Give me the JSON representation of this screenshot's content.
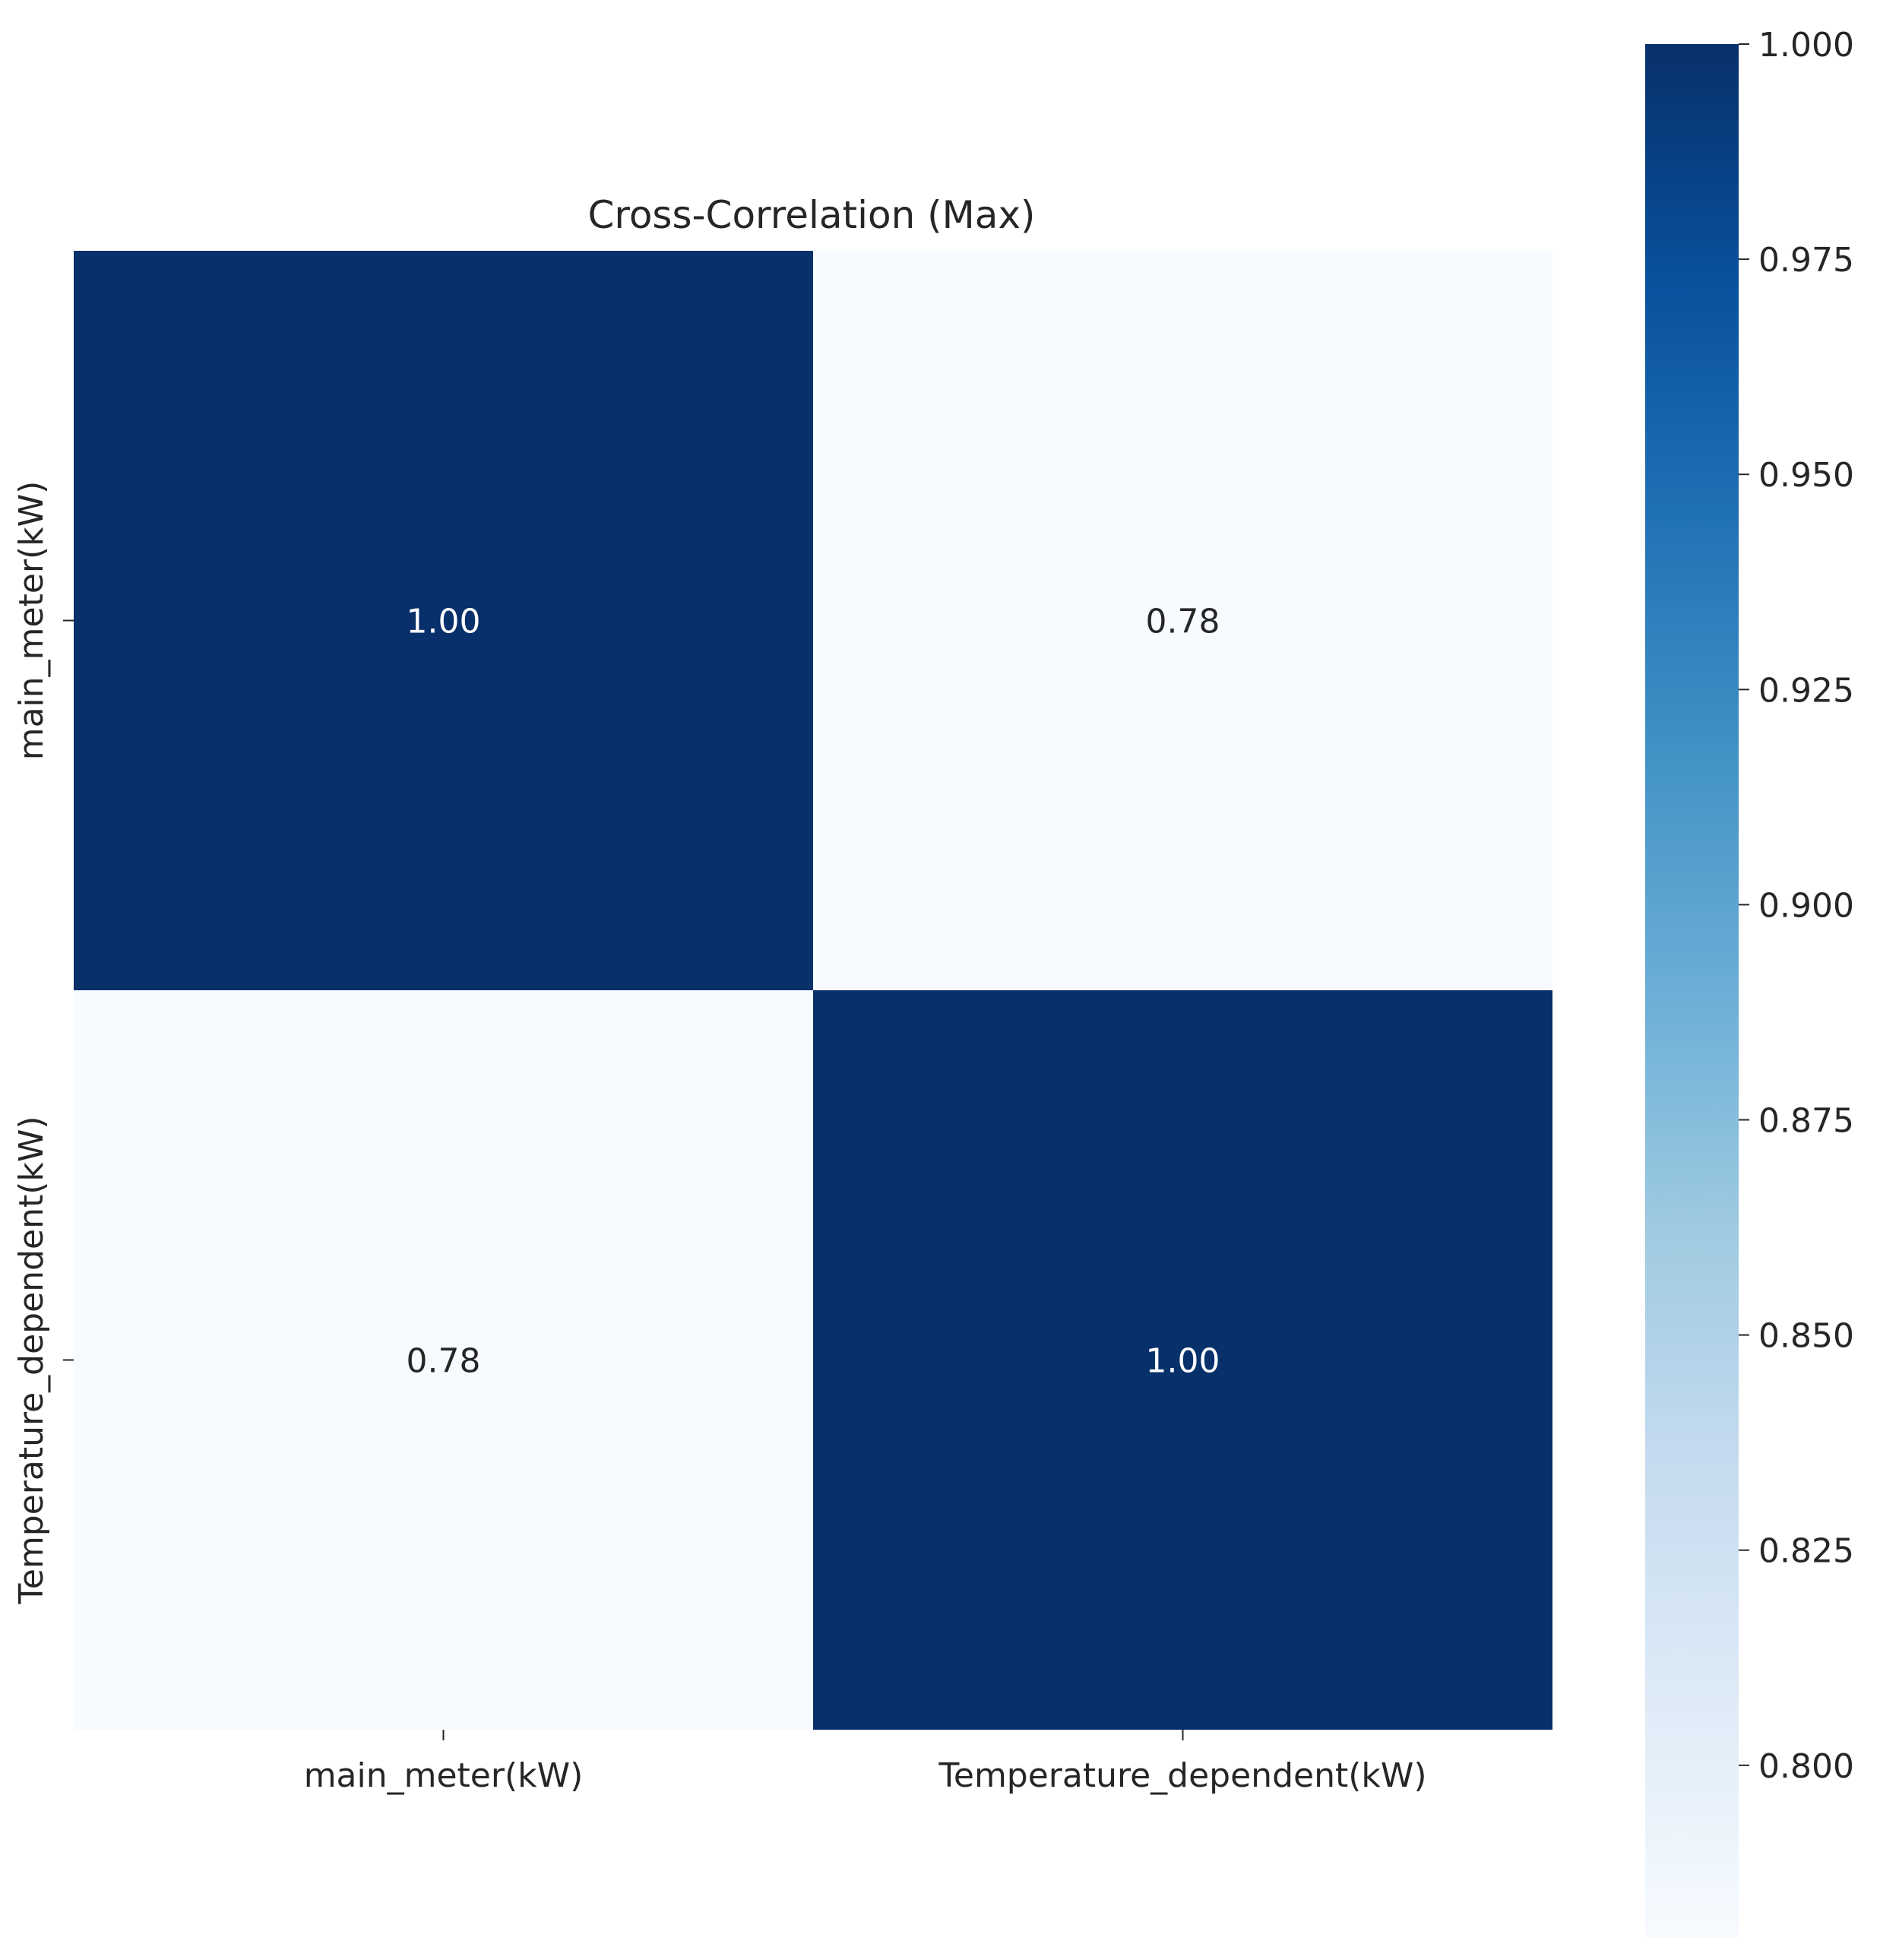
{
  "chart_data": {
    "type": "heatmap",
    "title": "Cross-Correlation (Max)",
    "x_categories": [
      "main_meter(kW)",
      "Temperature_dependent(kW)"
    ],
    "y_categories": [
      "main_meter(kW)",
      "Temperature_dependent(kW)"
    ],
    "values": [
      [
        1.0,
        0.78
      ],
      [
        0.78,
        1.0
      ]
    ],
    "cell_labels": [
      [
        "1.00",
        "0.78"
      ],
      [
        "0.78",
        "1.00"
      ]
    ],
    "colorbar": {
      "colormap": "Blues",
      "range": [
        0.78,
        1.0
      ],
      "ticks": [
        0.8,
        0.825,
        0.85,
        0.875,
        0.9,
        0.925,
        0.95,
        0.975,
        1.0
      ],
      "tick_labels": [
        "0.800",
        "0.825",
        "0.850",
        "0.875",
        "0.900",
        "0.925",
        "0.950",
        "0.975",
        "1.000"
      ]
    },
    "colors": {
      "low": "#f7fbff",
      "high": "#08306b",
      "text_on_dark": "#ffffff",
      "text_on_light": "#262626"
    }
  }
}
